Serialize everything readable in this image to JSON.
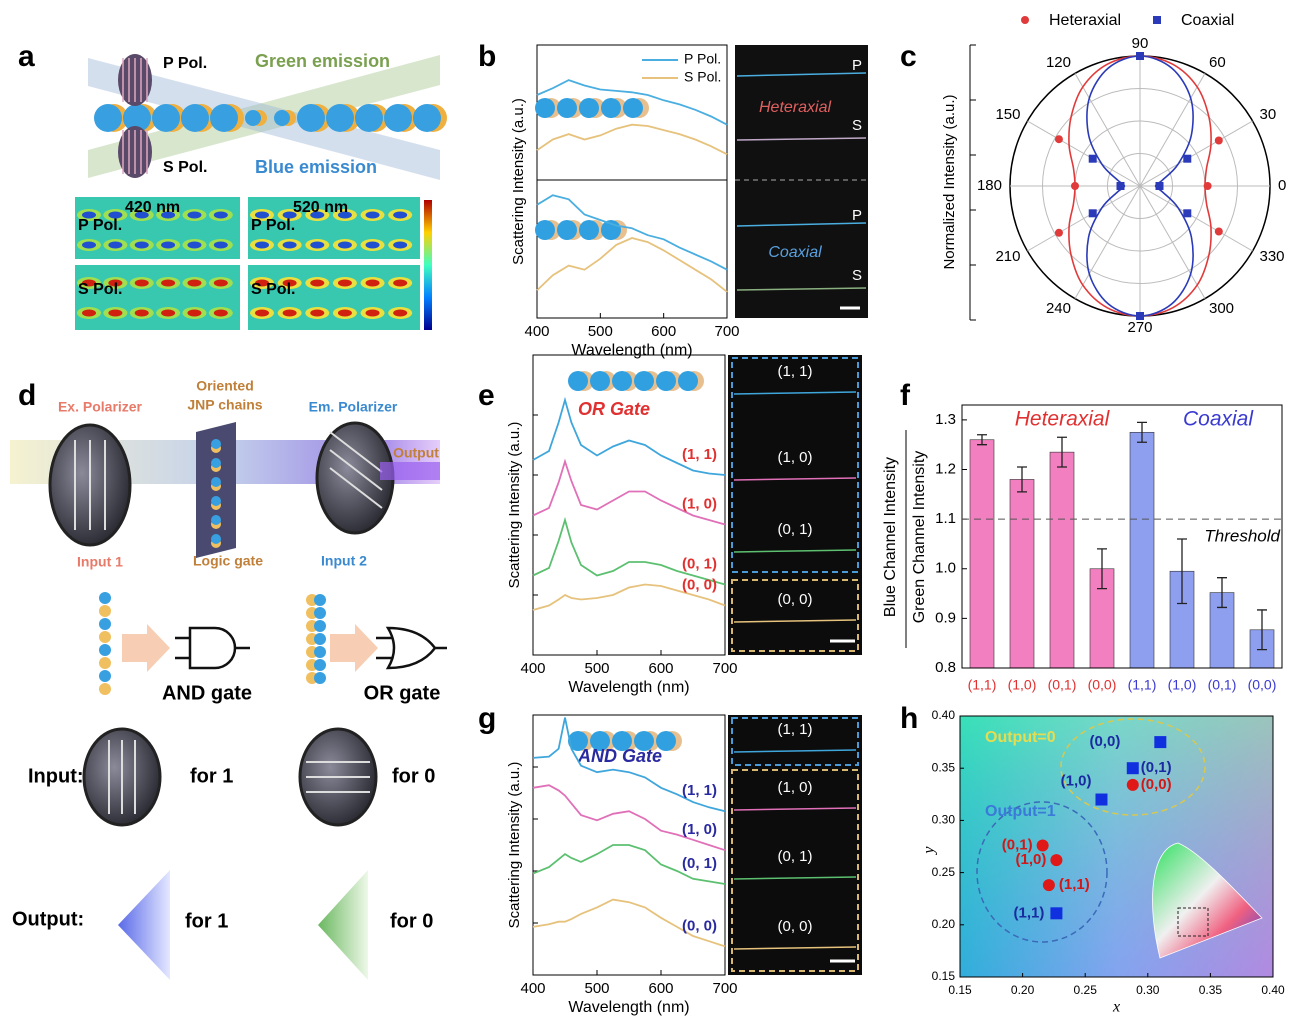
{
  "panel_labels": [
    "a",
    "b",
    "c",
    "d",
    "e",
    "f",
    "g",
    "h"
  ],
  "panel_a": {
    "p_pol": "P Pol.",
    "green_emission": "Green emission",
    "s_pol": "S Pol.",
    "blue_emission": "Blue emission",
    "maps": [
      {
        "title": "420 nm",
        "top": "P Pol.",
        "bottom": "S Pol."
      },
      {
        "title": "520 nm",
        "top": "P Pol.",
        "bottom": "S Pol."
      }
    ]
  },
  "panel_d": {
    "ex_polarizer": "Ex. Polarizer",
    "chains": [
      "Oriented",
      "JNP chains"
    ],
    "em_polarizer": "Em. Polarizer",
    "output": "Output",
    "input1": "Input 1",
    "logic_gate": "Logic gate",
    "input2": "Input 2",
    "and_gate": "AND gate",
    "or_gate": "OR gate",
    "input_label": "Input:",
    "input_states": [
      "for 1",
      "for 0"
    ],
    "output_label": "Output:",
    "output_states": [
      "for 1",
      "for 0"
    ]
  },
  "chart_data": [
    {
      "type": "line",
      "xlabel": "Wavelength (nm)",
      "ylabel": "Scattering Intensity (a.u.)",
      "xlim": [
        400,
        700
      ],
      "xticks": [
        400,
        500,
        600,
        700
      ],
      "ylim": [
        0,
        10
      ],
      "x": [
        400,
        425,
        450,
        475,
        500,
        525,
        550,
        575,
        600,
        625,
        650,
        675,
        700
      ],
      "legend": "upper right",
      "subplots": [
        {
          "image_label": "Heteraxial",
          "image_marks": [
            "P",
            "S"
          ],
          "series": [
            {
              "name": "P Pol.",
              "color": "#4aaee0",
              "values": [
                6.3,
                6.8,
                7.4,
                7.0,
                6.7,
                6.6,
                6.5,
                6.3,
                5.9,
                5.6,
                5.2,
                4.7,
                4.1
              ]
            },
            {
              "name": "S Pol.",
              "color": "#e6c27c",
              "values": [
                2.2,
                3.0,
                3.4,
                3.0,
                3.3,
                3.8,
                4.1,
                4.0,
                3.7,
                3.4,
                3.0,
                2.5,
                1.9
              ]
            }
          ]
        },
        {
          "image_label": "Coaxial",
          "image_marks": [
            "P",
            "S"
          ],
          "series": [
            {
              "color": "#4aaee0",
              "values": [
                8.2,
                8.9,
                8.6,
                7.5,
                7.1,
                6.7,
                6.5,
                6.0,
                5.7,
                5.1,
                4.6,
                4.1,
                3.5
              ]
            },
            {
              "color": "#e6c27c",
              "values": [
                2.0,
                3.1,
                3.8,
                3.5,
                4.3,
                5.3,
                5.8,
                5.5,
                4.9,
                4.2,
                3.5,
                2.8,
                1.9
              ]
            }
          ]
        }
      ]
    },
    {
      "type": "polar",
      "ylabel": "Normalized Intensity (a.u.)",
      "rlim": [
        0,
        1
      ],
      "rgrid": [
        0.25,
        0.5,
        0.75,
        1
      ],
      "thetaticks": [
        0,
        30,
        60,
        90,
        120,
        150,
        180,
        210,
        240,
        270,
        300,
        330
      ],
      "fit_theta": [
        0,
        15,
        30,
        45,
        60,
        75,
        90,
        105,
        120,
        135,
        150,
        165,
        180,
        195,
        210,
        225,
        240,
        255,
        270,
        285,
        300,
        315,
        330,
        345
      ],
      "series": [
        {
          "name": "Heteraxial",
          "color": "#e03a3a",
          "marker": "circle",
          "theta": [
            0,
            30,
            90,
            150,
            180,
            210,
            270,
            330
          ],
          "values": [
            0.52,
            0.7,
            1.0,
            0.72,
            0.5,
            0.72,
            1.0,
            0.7
          ],
          "fit": [
            0.5,
            0.53,
            0.63,
            0.75,
            0.88,
            0.97,
            1.0,
            0.97,
            0.88,
            0.75,
            0.63,
            0.53,
            0.5,
            0.53,
            0.63,
            0.75,
            0.88,
            0.97,
            1.0,
            0.97,
            0.88,
            0.75,
            0.63,
            0.53
          ]
        },
        {
          "name": "Coaxial",
          "color": "#2a3ab8",
          "marker": "square",
          "theta": [
            0,
            30,
            90,
            150,
            180,
            210,
            270,
            330
          ],
          "values": [
            0.15,
            0.42,
            1.0,
            0.42,
            0.15,
            0.42,
            1.0,
            0.42
          ],
          "fit": [
            0.12,
            0.18,
            0.34,
            0.56,
            0.78,
            0.94,
            1.0,
            0.94,
            0.78,
            0.56,
            0.34,
            0.18,
            0.12,
            0.18,
            0.34,
            0.56,
            0.78,
            0.94,
            1.0,
            0.94,
            0.78,
            0.56,
            0.34,
            0.18
          ]
        }
      ]
    },
    {
      "type": "line",
      "title": "OR Gate",
      "title_color": "#e03030",
      "label_color": "#e03030",
      "xlabel": "Wavelength (nm)",
      "ylabel": "Scattering Intensity (a.u.)",
      "xlim": [
        400,
        700
      ],
      "xticks": [
        400,
        500,
        600,
        700
      ],
      "ylim": [
        0,
        20
      ],
      "x": [
        400,
        425,
        440,
        450,
        460,
        475,
        500,
        525,
        550,
        575,
        600,
        625,
        650,
        675,
        700
      ],
      "series": [
        {
          "name": "(1, 1)",
          "color": "#3fa6dc",
          "values": [
            13.0,
            13.6,
            15.5,
            17.0,
            15.5,
            14.0,
            13.3,
            13.9,
            14.3,
            14.0,
            13.3,
            12.8,
            12.3,
            12.1,
            12.0
          ]
        },
        {
          "name": "(1, 0)",
          "color": "#e070b8",
          "values": [
            9.3,
            9.8,
            11.5,
            12.9,
            11.6,
            10.0,
            9.7,
            10.3,
            10.9,
            10.9,
            10.3,
            9.8,
            9.3,
            9.0,
            8.7
          ]
        },
        {
          "name": "(0, 1)",
          "color": "#5cc070",
          "values": [
            5.3,
            5.8,
            7.6,
            9.0,
            7.5,
            6.0,
            5.3,
            5.6,
            6.2,
            6.2,
            6.0,
            5.6,
            5.3,
            5.0,
            4.7
          ]
        },
        {
          "name": "(0, 0)",
          "color": "#e6c27c",
          "values": [
            3.0,
            3.3,
            3.7,
            4.0,
            3.8,
            3.7,
            3.8,
            4.0,
            4.5,
            4.7,
            4.6,
            4.3,
            4.0,
            3.7,
            3.3
          ]
        }
      ],
      "image_labels": [
        "(1, 1)",
        "(1, 0)",
        "(0, 1)",
        "(0, 0)"
      ]
    },
    {
      "type": "bar",
      "ylabel": [
        "Blue Channel Intensity",
        "Green Channel Intensity"
      ],
      "ylim": [
        0.8,
        1.33
      ],
      "yticks": [
        0.8,
        0.9,
        {
          "value": 1,
          "label": "1.0"
        },
        1.1,
        1.2,
        1.3
      ],
      "threshold": 1.1,
      "threshold_label": "Threshold",
      "series": [
        {
          "name": "Heteraxial",
          "color": "#f27fbf",
          "label_color": "#e03030",
          "categories": [
            "(1,1)",
            "(1,0)",
            "(0,1)",
            "(0,0)"
          ],
          "values": [
            1.26,
            1.18,
            1.235,
            1.0
          ],
          "errors": [
            0.01,
            0.025,
            0.03,
            0.04
          ]
        },
        {
          "name": "Coaxial",
          "color": "#8f9ff0",
          "label_color": "#3a3ad0",
          "categories": [
            "(1,1)",
            "(1,0)",
            "(0,1)",
            "(0,0)"
          ],
          "values": [
            1.275,
            0.995,
            0.952,
            0.877
          ],
          "errors": [
            0.02,
            0.065,
            0.03,
            0.04
          ]
        }
      ]
    },
    {
      "type": "line",
      "title": "AND Gate",
      "title_color": "#2a2aa0",
      "label_color": "#2a2aa0",
      "xlabel": "Wavelength (nm)",
      "ylabel": "Scattering Intensity (a.u.)",
      "xlim": [
        400,
        700
      ],
      "xticks": [
        400,
        500,
        600,
        700
      ],
      "ylim": [
        0,
        20
      ],
      "x": [
        400,
        425,
        440,
        450,
        460,
        475,
        500,
        525,
        550,
        575,
        600,
        625,
        650,
        675,
        700
      ],
      "series": [
        {
          "name": "(1, 1)",
          "color": "#3fa6dc",
          "values": [
            16.7,
            16.8,
            17.4,
            19.8,
            17.4,
            16.1,
            15.6,
            15.8,
            15.6,
            15.2,
            14.4,
            13.9,
            13.3,
            12.9,
            12.6
          ]
        },
        {
          "name": "(1, 0)",
          "color": "#e070b8",
          "values": [
            14.4,
            14.6,
            14.2,
            13.8,
            13.2,
            12.3,
            11.9,
            12.4,
            12.6,
            12.0,
            11.1,
            10.8,
            10.4,
            10.0,
            9.6
          ]
        },
        {
          "name": "(0, 1)",
          "color": "#5cc070",
          "values": [
            7.8,
            8.3,
            8.9,
            9.3,
            9.0,
            8.7,
            9.3,
            10.0,
            10.0,
            9.6,
            8.5,
            8.0,
            7.4,
            7.2,
            7.0
          ]
        },
        {
          "name": "(0, 0)",
          "color": "#e6c27c",
          "values": [
            3.7,
            3.9,
            4.1,
            4.1,
            4.3,
            4.7,
            5.2,
            5.8,
            5.6,
            5.2,
            4.4,
            3.7,
            3.0,
            2.6,
            2.2
          ]
        }
      ],
      "image_labels": [
        "(1, 1)",
        "(1, 0)",
        "(0, 1)",
        "(0, 0)"
      ]
    },
    {
      "type": "scatter",
      "xlabel": "x",
      "ylabel": "y",
      "xlim": [
        0.15,
        0.4
      ],
      "ylim": [
        0.15,
        0.4
      ],
      "xticks": [
        0.15,
        {
          "value": 0.2,
          "label": "0.20"
        },
        0.25,
        {
          "value": 0.3,
          "label": "0.30"
        },
        0.35,
        {
          "value": 0.4,
          "label": "0.40"
        }
      ],
      "yticks": [
        0.15,
        {
          "value": 0.2,
          "label": "0.20"
        },
        0.25,
        {
          "value": 0.3,
          "label": "0.30"
        },
        0.35,
        {
          "value": 0.4,
          "label": "0.40"
        }
      ],
      "annotations": [
        {
          "text": "Output=0",
          "color": "#e6dc50"
        },
        {
          "text": "Output=1",
          "color": "#3a7ad8"
        }
      ],
      "series": [
        {
          "color": "#1030e0",
          "marker": "square",
          "label_color": "#1a2aa0",
          "labels": [
            "(0,0)",
            "(0,1)",
            "(1,0)",
            "(1,1)"
          ],
          "x": [
            0.31,
            0.288,
            0.263,
            0.227
          ],
          "values": [
            0.375,
            0.35,
            0.32,
            0.211
          ]
        },
        {
          "color": "#e01818",
          "marker": "circle",
          "label_color": "#d01818",
          "labels": [
            "(0,0)",
            "(0,1)",
            "(1,0)",
            "(1,1)"
          ],
          "x": [
            0.288,
            0.216,
            0.227,
            0.221
          ],
          "values": [
            0.334,
            0.276,
            0.262,
            0.238
          ]
        }
      ]
    }
  ]
}
